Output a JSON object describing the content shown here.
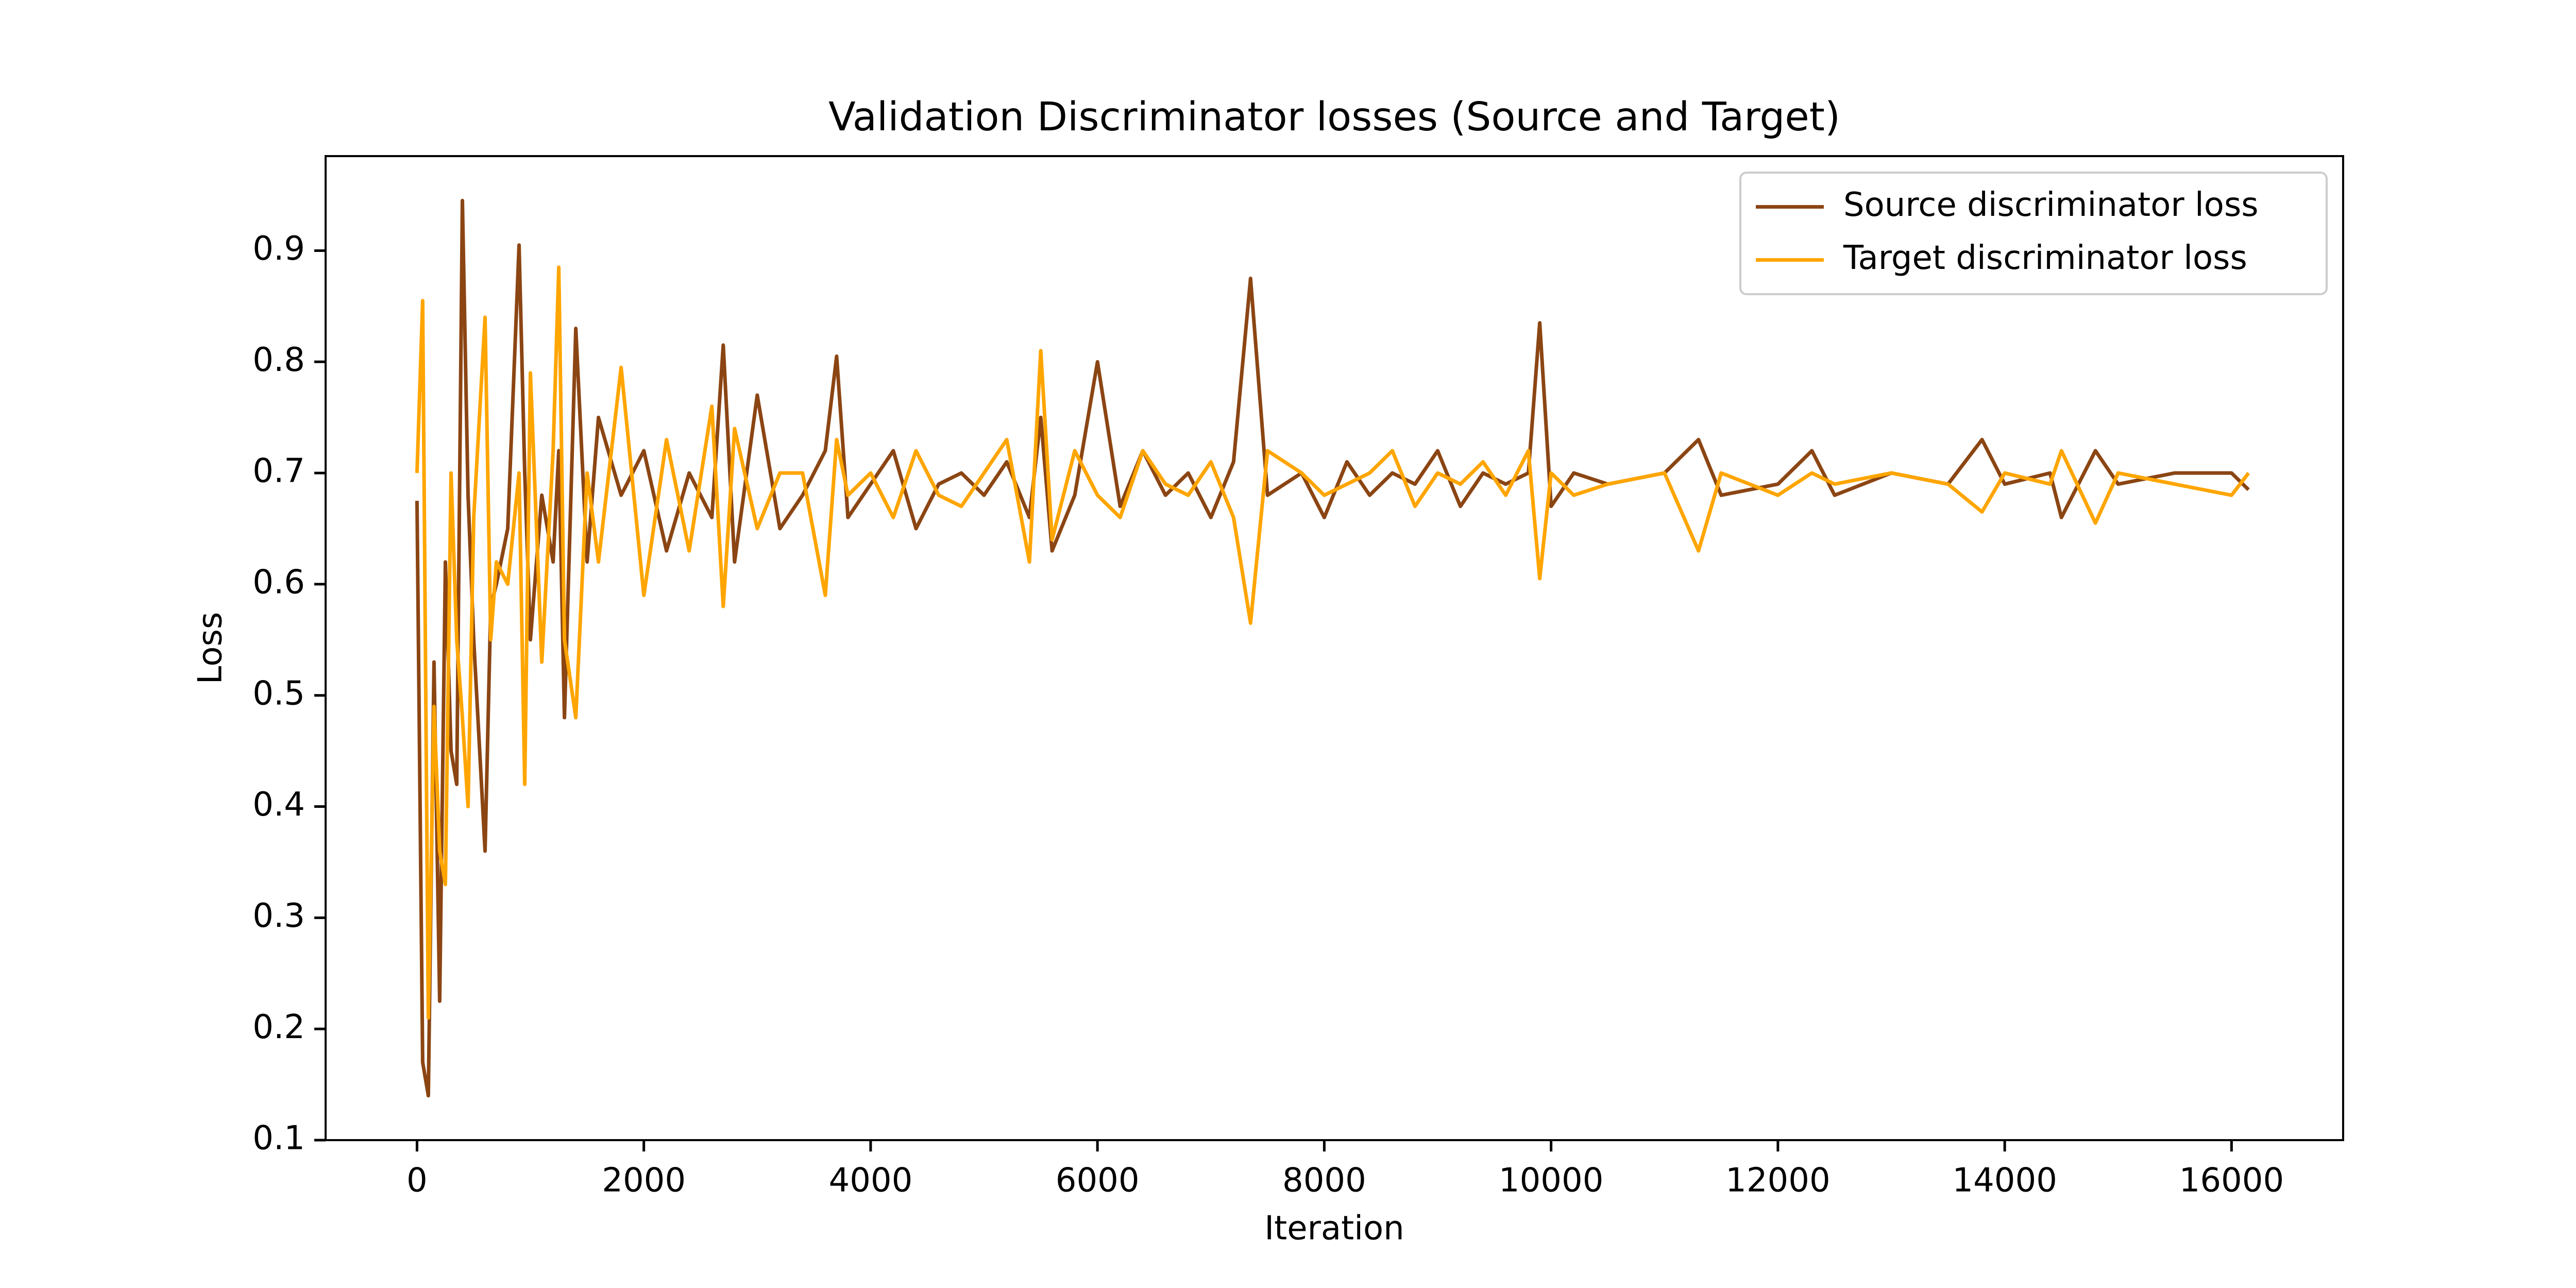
{
  "chart_data": {
    "type": "line",
    "title": "Validation Discriminator losses (Source and Target)",
    "x_label": "Iteration",
    "y_label": "Loss",
    "x": [
      0,
      50,
      100,
      150,
      200,
      250,
      300,
      350,
      400,
      450,
      500,
      600,
      650,
      700,
      800,
      900,
      950,
      1000,
      1100,
      1200,
      1250,
      1300,
      1400,
      1500,
      1600,
      1800,
      2000,
      2200,
      2400,
      2600,
      2700,
      2800,
      3000,
      3200,
      3400,
      3600,
      3700,
      3800,
      4000,
      4200,
      4400,
      4600,
      4800,
      5000,
      5200,
      5400,
      5500,
      5600,
      5800,
      6000,
      6200,
      6400,
      6600,
      6800,
      7000,
      7200,
      7350,
      7500,
      7800,
      8000,
      8200,
      8400,
      8600,
      8800,
      9000,
      9200,
      9400,
      9600,
      9800,
      9900,
      10000,
      10200,
      10500,
      11000,
      11300,
      11500,
      12000,
      12300,
      12500,
      13000,
      13500,
      13800,
      14000,
      14400,
      14500,
      14800,
      15000,
      15500,
      16000,
      16150
    ],
    "series": [
      {
        "name": "Source discriminator loss",
        "color": "#8b4513",
        "values": [
          0.675,
          0.17,
          0.14,
          0.53,
          0.225,
          0.62,
          0.45,
          0.42,
          0.945,
          0.68,
          0.55,
          0.36,
          0.58,
          0.6,
          0.65,
          0.905,
          0.7,
          0.55,
          0.68,
          0.62,
          0.72,
          0.48,
          0.83,
          0.62,
          0.75,
          0.68,
          0.72,
          0.63,
          0.7,
          0.66,
          0.815,
          0.62,
          0.77,
          0.65,
          0.68,
          0.72,
          0.805,
          0.66,
          0.69,
          0.72,
          0.65,
          0.69,
          0.7,
          0.68,
          0.71,
          0.66,
          0.75,
          0.63,
          0.68,
          0.8,
          0.67,
          0.72,
          0.68,
          0.7,
          0.66,
          0.71,
          0.875,
          0.68,
          0.7,
          0.66,
          0.71,
          0.68,
          0.7,
          0.69,
          0.72,
          0.67,
          0.7,
          0.69,
          0.7,
          0.835,
          0.67,
          0.7,
          0.69,
          0.7,
          0.73,
          0.68,
          0.69,
          0.72,
          0.68,
          0.7,
          0.69,
          0.73,
          0.69,
          0.7,
          0.66,
          0.72,
          0.69,
          0.7,
          0.7,
          0.685
        ]
      },
      {
        "name": "Target discriminator loss",
        "color": "#ffa500",
        "values": [
          0.7,
          0.855,
          0.21,
          0.49,
          0.36,
          0.33,
          0.7,
          0.55,
          0.48,
          0.4,
          0.66,
          0.84,
          0.55,
          0.62,
          0.6,
          0.7,
          0.42,
          0.79,
          0.53,
          0.72,
          0.885,
          0.55,
          0.48,
          0.7,
          0.62,
          0.795,
          0.59,
          0.73,
          0.63,
          0.76,
          0.58,
          0.74,
          0.65,
          0.7,
          0.7,
          0.59,
          0.73,
          0.68,
          0.7,
          0.66,
          0.72,
          0.68,
          0.67,
          0.7,
          0.73,
          0.62,
          0.81,
          0.64,
          0.72,
          0.68,
          0.66,
          0.72,
          0.69,
          0.68,
          0.71,
          0.66,
          0.565,
          0.72,
          0.7,
          0.68,
          0.69,
          0.7,
          0.72,
          0.67,
          0.7,
          0.69,
          0.71,
          0.68,
          0.72,
          0.605,
          0.7,
          0.68,
          0.69,
          0.7,
          0.63,
          0.7,
          0.68,
          0.7,
          0.69,
          0.7,
          0.69,
          0.665,
          0.7,
          0.69,
          0.72,
          0.655,
          0.7,
          0.69,
          0.68,
          0.7
        ]
      }
    ],
    "xlim": [
      -806,
      16984
    ],
    "ylim": [
      0.1,
      0.985
    ],
    "xticks": [
      0,
      2000,
      4000,
      6000,
      8000,
      10000,
      12000,
      14000,
      16000
    ],
    "yticks": [
      0.1,
      0.2,
      0.3,
      0.4,
      0.5,
      0.6,
      0.7,
      0.8,
      0.9
    ],
    "grid": false,
    "legend": "upper right"
  }
}
